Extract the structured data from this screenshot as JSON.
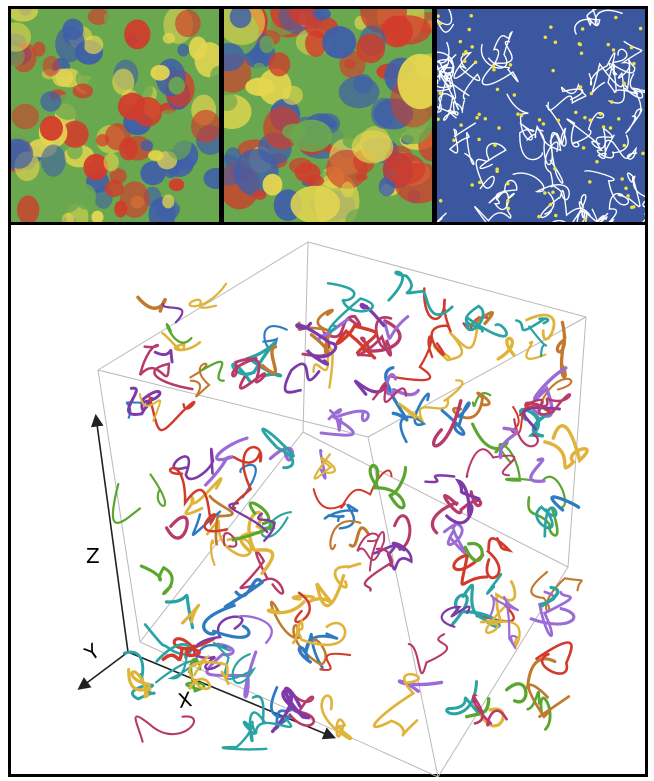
{
  "panels": [
    {
      "name": "panel-a",
      "palette": [
        "#3f5fa8",
        "#6aa84f",
        "#e5d64f",
        "#d23b2b"
      ]
    },
    {
      "name": "panel-b",
      "palette": [
        "#3f5fa8",
        "#6aa84f",
        "#e5d64f",
        "#d23b2b"
      ]
    },
    {
      "name": "panel-c",
      "palette": [
        "#3a57a0",
        "#ffffff",
        "#f2e23b"
      ]
    }
  ],
  "axes": {
    "z_label": "Z",
    "y_label": "Y",
    "x_label": "X"
  },
  "colors": {
    "tube_palette": [
      "#d23b2b",
      "#7d3aa8",
      "#2f7bc1",
      "#5aa62e",
      "#e0b43a",
      "#c07a2d",
      "#29a3a3",
      "#9b6bd6",
      "#b73a6a"
    ],
    "box_line": "#b9b9b9",
    "axis_line": "#222222"
  }
}
